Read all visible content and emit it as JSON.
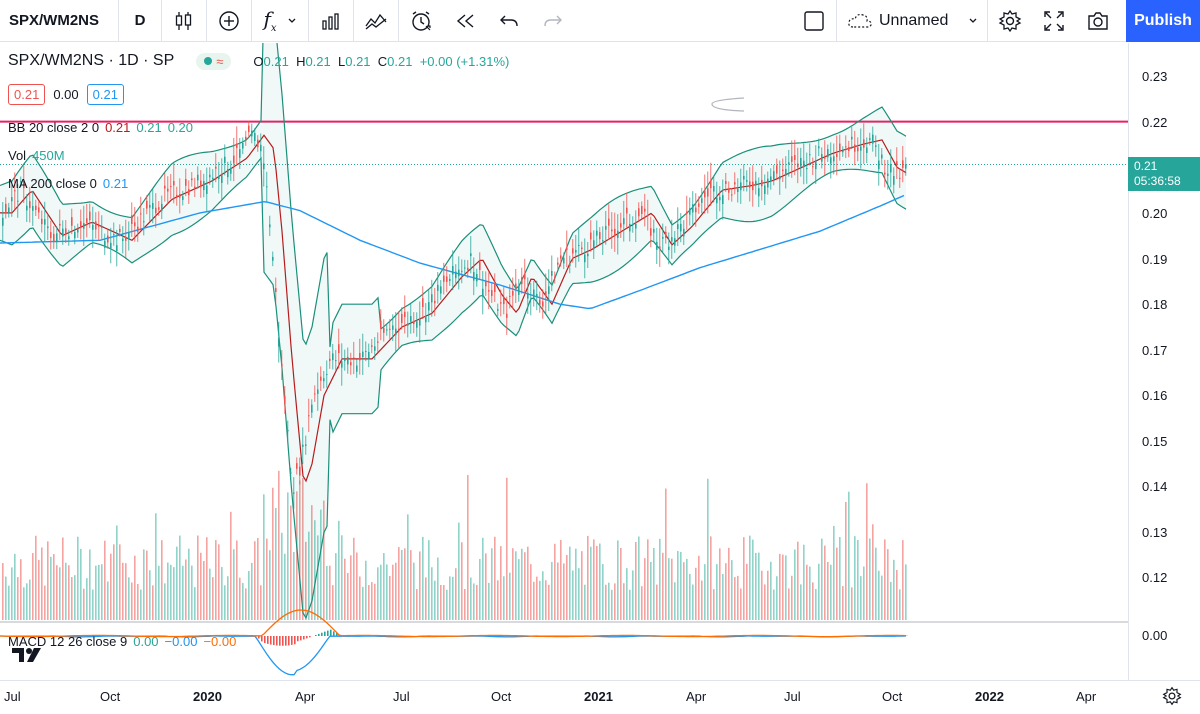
{
  "toolbar": {
    "symbol": "SPX/WM2NS",
    "interval": "D",
    "layout_name": "Unnamed",
    "publish_label": "Publish",
    "icons": [
      "candles-icon",
      "add-compare-icon",
      "indicators-icon",
      "chevron-down-icon",
      "templates-icon",
      "compare-icon",
      "alert-icon",
      "replay-icon",
      "undo-icon",
      "redo-icon",
      "fullscreen-box-icon",
      "cloud-icon",
      "settings-icon",
      "fullscreen-icon",
      "camera-icon"
    ]
  },
  "legend": {
    "title": "SPX/WM2NS · 1D · SP",
    "badge_symbol": "≈",
    "ohlc": {
      "o_label": "O",
      "o": "0.21",
      "h_label": "H",
      "h": "0.21",
      "l_label": "L",
      "l": "0.21",
      "c_label": "C",
      "c": "0.21",
      "change": "+0.00 (+1.31%)"
    },
    "bid": "0.21",
    "spread": "0.00",
    "ask": "0.21",
    "bb": {
      "label": "BB 20 close 2 0",
      "v1": "0.21",
      "v2": "0.21",
      "v3": "0.20"
    },
    "vol": {
      "label": "Vol",
      "value": "450M"
    },
    "ma": {
      "label": "MA 200 close 0",
      "value": "0.21"
    },
    "macd": {
      "label": "MACD 12 26 close 9",
      "v1": "0.00",
      "v2": "−0.00",
      "v3": "−0.00"
    }
  },
  "price_axis": {
    "ticks": [
      "0.23",
      "0.22",
      "0.21",
      "0.20",
      "0.19",
      "0.18",
      "0.17",
      "0.16",
      "0.15",
      "0.14",
      "0.13",
      "0.12"
    ],
    "macd_tick": "0.00",
    "last_price": "0.21",
    "countdown": "05:36:58"
  },
  "time_axis": {
    "labels": [
      "Jul",
      "Oct",
      "2020",
      "Apr",
      "Jul",
      "Oct",
      "2021",
      "Apr",
      "Jul",
      "Oct",
      "2022",
      "Apr"
    ]
  },
  "colors": {
    "up": "#26a69a",
    "down": "#ef5350",
    "bb_band": "#1b8f7a",
    "bb_basis": "#b71c1c",
    "ma": "#2196f3",
    "hline": "#e91e63",
    "macd": "#2196f3",
    "signal": "#ff6d00"
  },
  "chart_data": {
    "type": "candlestick",
    "ylim": [
      0.115,
      0.235
    ],
    "x": [
      "Jul",
      "Oct",
      "2020",
      "Apr",
      "Jul",
      "Oct",
      "2021",
      "Apr",
      "Jul",
      "Oct"
    ],
    "close_approx": [
      0.201,
      0.197,
      0.213,
      0.15,
      0.172,
      0.186,
      0.19,
      0.198,
      0.208,
      0.21
    ],
    "horizontal_line": 0.22,
    "last_value": 0.21
  }
}
